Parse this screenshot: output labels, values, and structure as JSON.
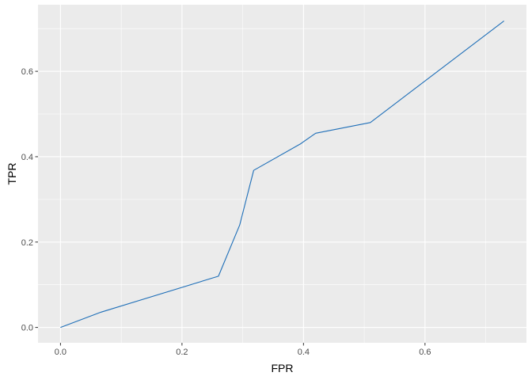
{
  "chart_data": {
    "type": "line",
    "title": "",
    "xlabel": "FPR",
    "ylabel": "TPR",
    "xlim": [
      -0.037,
      0.767
    ],
    "ylim": [
      -0.036,
      0.756
    ],
    "x_ticks": [
      0.0,
      0.2,
      0.4,
      0.6
    ],
    "y_ticks": [
      0.0,
      0.2,
      0.4,
      0.6
    ],
    "x_tick_labels": [
      "0.0",
      "0.2",
      "0.4",
      "0.6"
    ],
    "y_tick_labels": [
      "0.0",
      "0.2",
      "0.4",
      "0.6"
    ],
    "grid": true,
    "background_color": "#ebebeb",
    "grid_color": "#ffffff",
    "series": [
      {
        "color": "#1f6fb8",
        "x": [
          0.0,
          0.065,
          0.26,
          0.295,
          0.318,
          0.395,
          0.42,
          0.51,
          0.73
        ],
        "y": [
          0.0,
          0.035,
          0.12,
          0.24,
          0.368,
          0.43,
          0.455,
          0.48,
          0.718
        ]
      }
    ]
  }
}
